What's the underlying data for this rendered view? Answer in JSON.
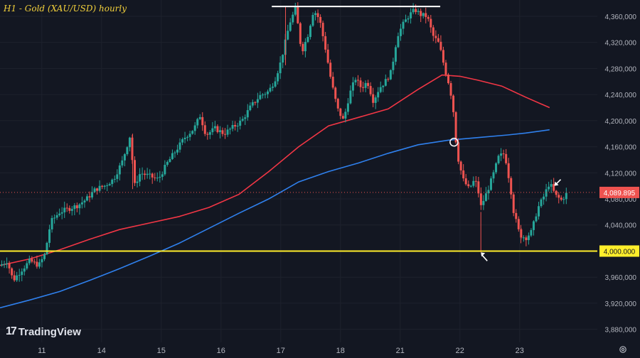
{
  "title": "H1 - Gold (XAU/USD) hourly",
  "brand": "TradingView",
  "colors": {
    "background": "#131722",
    "up": "#26a69a",
    "down": "#ef5350",
    "ma_red": "#f23645",
    "ma_blue": "#2f80ed",
    "support": "#ffee2b",
    "grid": "#1e222d",
    "axis_text": "#b2b5be"
  },
  "icons": {
    "settings": "gear-icon",
    "logo": "tradingview-logo-icon"
  },
  "chart_data": {
    "type": "candlestick",
    "ylim": [
      3860,
      4385
    ],
    "yticks": [
      3880,
      3920,
      3960,
      4000,
      4040,
      4080,
      4120,
      4160,
      4200,
      4240,
      4280,
      4320,
      4360
    ],
    "ytick_labels": [
      "3,880,000",
      "3,920,000",
      "3,960,000",
      "4,000,000",
      "4,040,000",
      "4,080,000",
      "4,120,000",
      "4,160,000",
      "4,200,000",
      "4,240,000",
      "4,280,000",
      "4,320,000",
      "4,360,000"
    ],
    "x_range": [
      0,
      100
    ],
    "xticks": [
      {
        "label": "11",
        "x": 7
      },
      {
        "label": "14",
        "x": 17
      },
      {
        "label": "15",
        "x": 27
      },
      {
        "label": "16",
        "x": 37
      },
      {
        "label": "17",
        "x": 47
      },
      {
        "label": "18",
        "x": 57
      },
      {
        "label": "21",
        "x": 67
      },
      {
        "label": "22",
        "x": 77
      },
      {
        "label": "23",
        "x": 87
      }
    ],
    "current_price": 4089.895,
    "current_price_label": "4,089.895",
    "support_level": 4000,
    "support_label": "4,000.000",
    "top_line": {
      "x0": 45.5,
      "x1": 73.7,
      "y": 4375
    },
    "intersection": {
      "x": 76.0,
      "y": 4167
    },
    "arrows": [
      {
        "x": 80.5,
        "y": 3998,
        "dir": "up-left"
      },
      {
        "x": 92.8,
        "y": 4100,
        "dir": "down-left"
      }
    ],
    "ma_red": [
      [
        0,
        3978
      ],
      [
        5,
        3988
      ],
      [
        10,
        4002
      ],
      [
        15,
        4018
      ],
      [
        20,
        4033
      ],
      [
        25,
        4043
      ],
      [
        30,
        4053
      ],
      [
        35,
        4067
      ],
      [
        40,
        4087
      ],
      [
        45,
        4122
      ],
      [
        50,
        4160
      ],
      [
        55,
        4192
      ],
      [
        60,
        4205
      ],
      [
        65,
        4218
      ],
      [
        70,
        4248
      ],
      [
        74,
        4270
      ],
      [
        77,
        4268
      ],
      [
        80,
        4262
      ],
      [
        84,
        4253
      ],
      [
        88,
        4236
      ],
      [
        92,
        4220
      ]
    ],
    "ma_blue": [
      [
        0,
        3913
      ],
      [
        5,
        3925
      ],
      [
        10,
        3938
      ],
      [
        15,
        3955
      ],
      [
        20,
        3973
      ],
      [
        25,
        3992
      ],
      [
        30,
        4012
      ],
      [
        35,
        4035
      ],
      [
        40,
        4058
      ],
      [
        45,
        4080
      ],
      [
        50,
        4106
      ],
      [
        55,
        4122
      ],
      [
        60,
        4135
      ],
      [
        65,
        4150
      ],
      [
        70,
        4163
      ],
      [
        75,
        4170
      ],
      [
        80,
        4174
      ],
      [
        85,
        4178
      ],
      [
        88,
        4181
      ],
      [
        92,
        4186
      ]
    ],
    "price_path": [
      [
        0,
        3978
      ],
      [
        1.2,
        3985
      ],
      [
        2.2,
        3955
      ],
      [
        3.5,
        3970
      ],
      [
        5,
        3985
      ],
      [
        6.5,
        3978
      ],
      [
        7.5,
        3995
      ],
      [
        8.5,
        4045
      ],
      [
        10,
        4060
      ],
      [
        11.5,
        4065
      ],
      [
        13,
        4070
      ],
      [
        14.5,
        4080
      ],
      [
        16,
        4095
      ],
      [
        17.5,
        4100
      ],
      [
        19,
        4110
      ],
      [
        20.5,
        4138
      ],
      [
        21.8,
        4178
      ],
      [
        22.5,
        4100
      ],
      [
        23.5,
        4120
      ],
      [
        25,
        4115
      ],
      [
        26.5,
        4110
      ],
      [
        28,
        4135
      ],
      [
        29.5,
        4155
      ],
      [
        31,
        4175
      ],
      [
        32.5,
        4188
      ],
      [
        33.5,
        4208
      ],
      [
        34.5,
        4178
      ],
      [
        36,
        4188
      ],
      [
        37.5,
        4180
      ],
      [
        39,
        4190
      ],
      [
        40.5,
        4200
      ],
      [
        42,
        4222
      ],
      [
        43.5,
        4238
      ],
      [
        45,
        4245
      ],
      [
        46,
        4262
      ],
      [
        47,
        4290
      ],
      [
        48.5,
        4350
      ],
      [
        49.5,
        4372
      ],
      [
        50.5,
        4305
      ],
      [
        51.5,
        4330
      ],
      [
        52.5,
        4370
      ],
      [
        53.5,
        4355
      ],
      [
        54.5,
        4310
      ],
      [
        55.5,
        4258
      ],
      [
        56.5,
        4218
      ],
      [
        57.5,
        4200
      ],
      [
        58.5,
        4240
      ],
      [
        59.5,
        4265
      ],
      [
        60.5,
        4250
      ],
      [
        61.5,
        4260
      ],
      [
        62.5,
        4230
      ],
      [
        63.5,
        4250
      ],
      [
        64.5,
        4260
      ],
      [
        65.5,
        4275
      ],
      [
        66.5,
        4330
      ],
      [
        67.5,
        4348
      ],
      [
        68.5,
        4362
      ],
      [
        69.5,
        4370
      ],
      [
        70.5,
        4362
      ],
      [
        71.5,
        4360
      ],
      [
        72.5,
        4330
      ],
      [
        73.5,
        4318
      ],
      [
        74.5,
        4278
      ],
      [
        75.2,
        4255
      ],
      [
        75.8,
        4225
      ],
      [
        76.5,
        4150
      ],
      [
        77.5,
        4110
      ],
      [
        78.5,
        4095
      ],
      [
        79.5,
        4110
      ],
      [
        80,
        4095
      ],
      [
        80.5,
        4068
      ],
      [
        81.5,
        4090
      ],
      [
        82.5,
        4115
      ],
      [
        83.5,
        4145
      ],
      [
        84.5,
        4150
      ],
      [
        85.5,
        4095
      ],
      [
        86,
        4060
      ],
      [
        87,
        4025
      ],
      [
        88,
        4020
      ],
      [
        89,
        4030
      ],
      [
        90,
        4065
      ],
      [
        91,
        4083
      ],
      [
        92,
        4105
      ],
      [
        93,
        4085
      ],
      [
        94,
        4078
      ],
      [
        95,
        4090
      ]
    ]
  }
}
